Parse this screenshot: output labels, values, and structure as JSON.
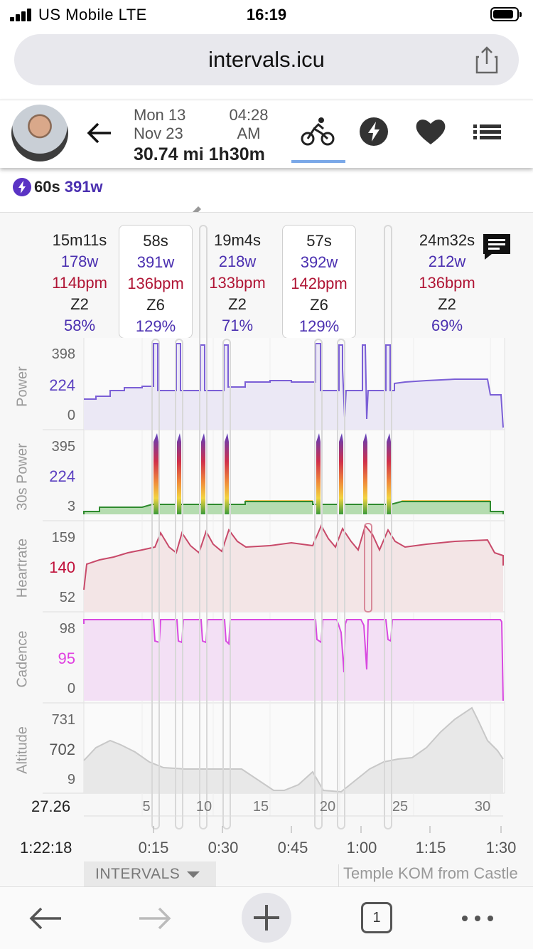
{
  "status": {
    "carrier": "US  Mobile  LTE",
    "time": "16:19"
  },
  "browser": {
    "url": "intervals.icu",
    "tab_count": "1"
  },
  "activity": {
    "day": "Mon 13",
    "month_year": "Nov 23",
    "time_hm": "04:28",
    "time_ampm": "AM",
    "distance": "30.74 mi",
    "duration": "1h30m"
  },
  "best": {
    "duration": "60s",
    "watts": "391w"
  },
  "intervals": [
    {
      "dur": "15m11s",
      "watts": "178w",
      "hr": "114bpm",
      "zone": "Z2",
      "pct": "58%"
    },
    {
      "dur": "58s",
      "watts": "391w",
      "hr": "136bpm",
      "zone": "Z6",
      "pct": "129%"
    },
    {
      "dur": "19m4s",
      "watts": "218w",
      "hr": "133bpm",
      "zone": "Z2",
      "pct": "71%"
    },
    {
      "dur": "57s",
      "watts": "392w",
      "hr": "142bpm",
      "zone": "Z6",
      "pct": "129%"
    },
    {
      "dur": "24m32s",
      "watts": "212w",
      "hr": "136bpm",
      "zone": "Z2",
      "pct": "69%"
    }
  ],
  "panels": [
    {
      "label": "Power",
      "max": "398",
      "cur": "224",
      "min": "0",
      "cur_color": "#5a3fc0"
    },
    {
      "label": "30s Power",
      "max": "395",
      "cur": "224",
      "min": "3",
      "cur_color": "#5a3fc0"
    },
    {
      "label": "Heartrate",
      "max": "159",
      "cur": "140",
      "min": "52",
      "cur_color": "#c0103a"
    },
    {
      "label": "Cadence",
      "max": "98",
      "cur": "95",
      "min": "0",
      "cur_color": "#e040e0"
    },
    {
      "label": "Altitude",
      "max": "731",
      "cur": "702",
      "min": "9",
      "cur_color": "#555555"
    }
  ],
  "distance_axis": {
    "current": "27.26",
    "ticks": [
      "5",
      "10",
      "15",
      "20",
      "25",
      "30"
    ]
  },
  "time_axis": {
    "current": "1:22:18",
    "ticks": [
      "0:15",
      "0:30",
      "0:45",
      "1:00",
      "1:15",
      "1:30"
    ]
  },
  "footer": {
    "intervals_label": "INTERVALS",
    "route": "Temple KOM from Castle"
  },
  "colors": {
    "power": "#7b5fd6",
    "heartrate": "#c84a6a",
    "cadence": "#d84ae0",
    "altitude": "#c8c8c8",
    "accent": "#4a2fb0"
  }
}
